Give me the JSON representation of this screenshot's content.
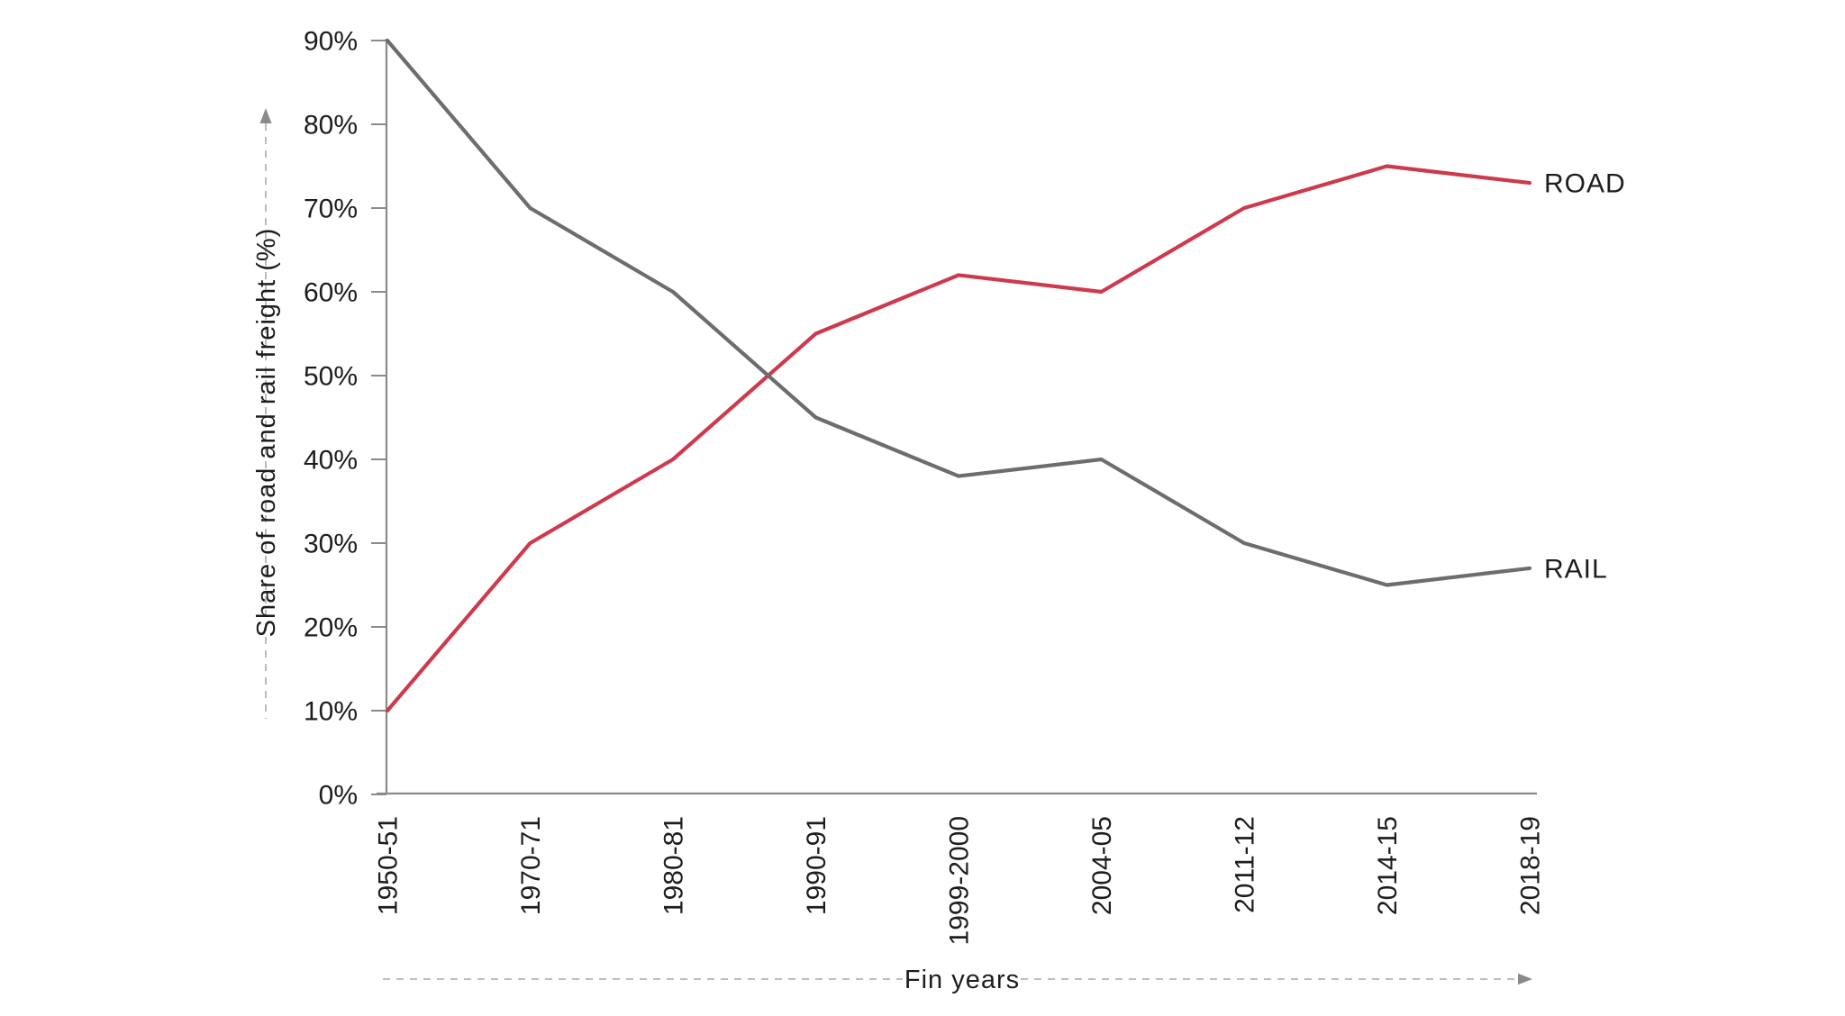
{
  "chart_data": {
    "type": "line",
    "categories": [
      "1950-51",
      "1970-71",
      "1980-81",
      "1990-91",
      "1999-2000",
      "2004-05",
      "2011-12",
      "2014-15",
      "2018-19"
    ],
    "series": [
      {
        "name": "ROAD",
        "color": "#ce3a4d",
        "values": [
          10,
          30,
          40,
          55,
          62,
          60,
          70,
          75,
          73
        ]
      },
      {
        "name": "RAIL",
        "color": "#6d6d6d",
        "values": [
          90,
          70,
          60,
          45,
          38,
          40,
          30,
          25,
          27
        ]
      }
    ],
    "xlabel": "Fin years",
    "ylabel": "Share of road and rail freight (%)",
    "y_tick_labels": [
      "0%",
      "10%",
      "20%",
      "30%",
      "40%",
      "50%",
      "60%",
      "70%",
      "80%",
      "90%"
    ],
    "ylim": [
      0,
      90
    ],
    "grid": false,
    "legend_position": "line-end-labels",
    "colors": {
      "axis": "#8a8a8a",
      "text": "#1d1d1d",
      "guide": "#a9a9a9"
    }
  }
}
